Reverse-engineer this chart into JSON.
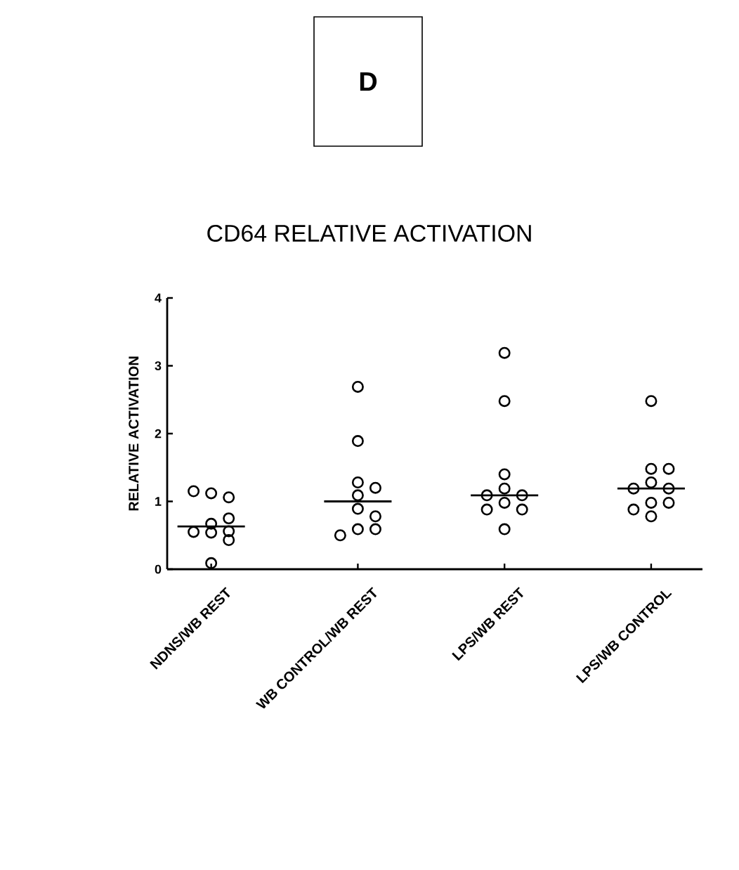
{
  "chart_data": {
    "type": "scatter",
    "title": "CD64 RELATIVE ACTIVATION",
    "ylabel": "RELATIVE ACTIVATION",
    "annotations": [
      "D"
    ],
    "categories": [
      "NDNS/WB REST",
      "WB CONTROL/WB REST",
      "LPS/WB REST",
      "LPS/WB CONTROL"
    ],
    "ylim": [
      0,
      4
    ],
    "yticks": [
      0,
      1,
      2,
      3,
      4
    ],
    "grid": false,
    "series": [
      {
        "marker": "circle",
        "color": "#000000",
        "x": [
          "NDNS/WB REST",
          "NDNS/WB REST",
          "NDNS/WB REST",
          "NDNS/WB REST",
          "NDNS/WB REST",
          "NDNS/WB REST",
          "NDNS/WB REST",
          "NDNS/WB REST",
          "NDNS/WB REST",
          "NDNS/WB REST",
          "WB CONTROL/WB REST",
          "WB CONTROL/WB REST",
          "WB CONTROL/WB REST",
          "WB CONTROL/WB REST",
          "WB CONTROL/WB REST",
          "WB CONTROL/WB REST",
          "WB CONTROL/WB REST",
          "WB CONTROL/WB REST",
          "WB CONTROL/WB REST",
          "WB CONTROL/WB REST",
          "LPS/WB REST",
          "LPS/WB REST",
          "LPS/WB REST",
          "LPS/WB REST",
          "LPS/WB REST",
          "LPS/WB REST",
          "LPS/WB REST",
          "LPS/WB REST",
          "LPS/WB REST",
          "LPS/WB REST",
          "LPS/WB CONTROL",
          "LPS/WB CONTROL",
          "LPS/WB CONTROL",
          "LPS/WB CONTROL",
          "LPS/WB CONTROL",
          "LPS/WB CONTROL",
          "LPS/WB CONTROL",
          "LPS/WB CONTROL",
          "LPS/WB CONTROL",
          "LPS/WB CONTROL"
        ],
        "values": [
          1.12,
          1.06,
          1.15,
          0.67,
          0.75,
          0.56,
          0.54,
          0.55,
          0.43,
          0.09,
          2.69,
          1.89,
          1.28,
          1.2,
          1.09,
          0.89,
          0.78,
          0.59,
          0.59,
          0.5,
          3.19,
          2.48,
          1.4,
          1.19,
          1.09,
          1.09,
          0.98,
          0.88,
          0.88,
          0.59,
          2.48,
          1.48,
          1.48,
          1.28,
          1.19,
          1.19,
          0.98,
          0.98,
          0.88,
          0.78
        ]
      },
      {
        "type": "box",
        "color": "#000000",
        "boxes": [
          {
            "low": 0.63,
            "q1": 0.63,
            "median": 0.63,
            "q3": 0.63,
            "high": 0.63
          },
          {
            "low": 1.0,
            "q1": 1.0,
            "median": 1.0,
            "q3": 1.0,
            "high": 1.0
          },
          {
            "low": 1.09,
            "q1": 1.09,
            "median": 1.09,
            "q3": 1.09,
            "high": 1.09
          },
          {
            "low": 1.19,
            "q1": 1.19,
            "median": 1.19,
            "q3": 1.19,
            "high": 1.19
          }
        ]
      }
    ]
  }
}
